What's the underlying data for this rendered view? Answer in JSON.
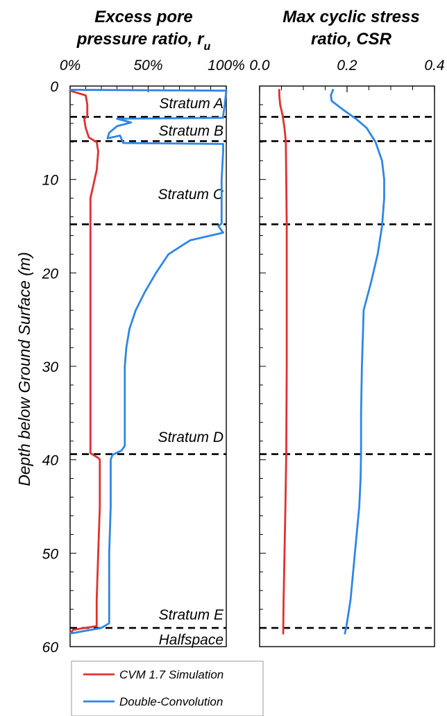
{
  "chart_data": [
    {
      "type": "line",
      "title_lines": [
        "Excess pore",
        "pressure ratio, r",
        "u"
      ],
      "xlabel": "",
      "ylabel": "Depth below Ground Surface (m)",
      "xlim": [
        0,
        100
      ],
      "ylim": [
        0,
        60
      ],
      "y_inverted": true,
      "x_axis_position": "top",
      "xtick_values": [
        0,
        50,
        100
      ],
      "xtick_labels": [
        "0%",
        "50%",
        "100%"
      ],
      "ytick_values": [
        0,
        10,
        20,
        30,
        40,
        50,
        60
      ],
      "ytick_labels": [
        "0",
        "10",
        "20",
        "30",
        "40",
        "50",
        "60"
      ],
      "series": [
        {
          "name": "CVM 1.7 Simulation",
          "color": "#e03030",
          "points": [
            [
              0,
              0.5
            ],
            [
              10,
              1
            ],
            [
              11,
              2
            ],
            [
              11,
              3.2
            ],
            [
              9,
              3.5
            ],
            [
              10,
              4.5
            ],
            [
              12,
              5.5
            ],
            [
              17,
              6
            ],
            [
              18,
              7
            ],
            [
              17,
              9
            ],
            [
              15,
              10.5
            ],
            [
              13,
              12
            ],
            [
              13,
              14.5
            ],
            [
              13,
              15.5
            ],
            [
              13,
              17
            ],
            [
              13,
              25
            ],
            [
              13,
              30
            ],
            [
              13,
              35
            ],
            [
              13,
              39.3
            ],
            [
              18,
              39.8
            ],
            [
              19,
              40
            ],
            [
              19,
              45
            ],
            [
              18,
              50
            ],
            [
              17,
              55
            ],
            [
              17,
              57.8
            ],
            [
              2,
              58.2
            ],
            [
              0,
              58.6
            ]
          ]
        },
        {
          "name": "Double-Convolution",
          "color": "#2f86e6",
          "points": [
            [
              0,
              0.4
            ],
            [
              100,
              0.5
            ],
            [
              99,
              2
            ],
            [
              98,
              3.2
            ],
            [
              98,
              3.4
            ],
            [
              30,
              3.5
            ],
            [
              39,
              3.9
            ],
            [
              30,
              4.3
            ],
            [
              25,
              5
            ],
            [
              24,
              5.6
            ],
            [
              32,
              5.3
            ],
            [
              34,
              6.1
            ],
            [
              98,
              6.2
            ],
            [
              98,
              7
            ],
            [
              97,
              10
            ],
            [
              97,
              14.7
            ],
            [
              95,
              15
            ],
            [
              98,
              15.7
            ],
            [
              77,
              16.5
            ],
            [
              63,
              18
            ],
            [
              55,
              20
            ],
            [
              48,
              22
            ],
            [
              42,
              24
            ],
            [
              38,
              26
            ],
            [
              36,
              28
            ],
            [
              35,
              30
            ],
            [
              35,
              35
            ],
            [
              35,
              38.5
            ],
            [
              33,
              39
            ],
            [
              27,
              39.5
            ],
            [
              26,
              40
            ],
            [
              26,
              45
            ],
            [
              25,
              50
            ],
            [
              25,
              55
            ],
            [
              25,
              57.5
            ],
            [
              20,
              58
            ],
            [
              0,
              58.6
            ]
          ]
        }
      ]
    },
    {
      "type": "line",
      "title_lines": [
        "Max cyclic stress",
        "ratio, CSR"
      ],
      "xlabel": "",
      "ylabel": "",
      "xlim": [
        0,
        0.4
      ],
      "ylim": [
        0,
        60
      ],
      "y_inverted": true,
      "x_axis_position": "top",
      "xtick_values": [
        0,
        0.2,
        0.4
      ],
      "xtick_labels": [
        "0.0",
        "0.2",
        "0.4"
      ],
      "series": [
        {
          "name": "CVM 1.7 Simulation",
          "color": "#e03030",
          "points": [
            [
              0.045,
              0.4
            ],
            [
              0.045,
              1
            ],
            [
              0.047,
              2
            ],
            [
              0.052,
              3
            ],
            [
              0.057,
              4.5
            ],
            [
              0.06,
              6
            ],
            [
              0.061,
              10
            ],
            [
              0.062,
              15
            ],
            [
              0.062,
              20
            ],
            [
              0.062,
              30
            ],
            [
              0.061,
              39.3
            ],
            [
              0.059,
              45
            ],
            [
              0.057,
              50
            ],
            [
              0.055,
              55
            ],
            [
              0.054,
              58.6
            ]
          ]
        },
        {
          "name": "Double-Convolution",
          "color": "#2f86e6",
          "points": [
            [
              0.168,
              0.4
            ],
            [
              0.163,
              1
            ],
            [
              0.165,
              1.6
            ],
            [
              0.19,
              2.5
            ],
            [
              0.22,
              3.5
            ],
            [
              0.245,
              4.5
            ],
            [
              0.265,
              6
            ],
            [
              0.28,
              8
            ],
            [
              0.285,
              10
            ],
            [
              0.285,
              12
            ],
            [
              0.28,
              15
            ],
            [
              0.27,
              18
            ],
            [
              0.255,
              21
            ],
            [
              0.238,
              24
            ],
            [
              0.236,
              27
            ],
            [
              0.234,
              30
            ],
            [
              0.232,
              35
            ],
            [
              0.232,
              39.3
            ],
            [
              0.231,
              42
            ],
            [
              0.228,
              45
            ],
            [
              0.218,
              50
            ],
            [
              0.208,
              55
            ],
            [
              0.198,
              58
            ],
            [
              0.195,
              58.6
            ]
          ]
        }
      ]
    }
  ],
  "strata": [
    {
      "label": "Stratum A",
      "label_depth": 1.8,
      "boundary_depth": 3.3
    },
    {
      "label": "Stratum B",
      "label_depth": 4.7,
      "boundary_depth": 5.9
    },
    {
      "label": "Stratum C",
      "label_depth": 11.5,
      "boundary_depth": 14.8
    },
    {
      "label": "Stratum D",
      "label_depth": 37.5,
      "boundary_depth": 39.4
    },
    {
      "label": "Stratum E",
      "label_depth": 56.5,
      "boundary_depth": 58.0
    },
    {
      "label": "Halfspace",
      "label_depth": 59.2,
      "boundary_depth": null
    }
  ],
  "legend": {
    "placement": "bottom-left",
    "entries": [
      {
        "label": "CVM 1.7 Simulation",
        "color": "#e03030"
      },
      {
        "label": "Double-Convolution",
        "color": "#2f86e6"
      }
    ]
  }
}
